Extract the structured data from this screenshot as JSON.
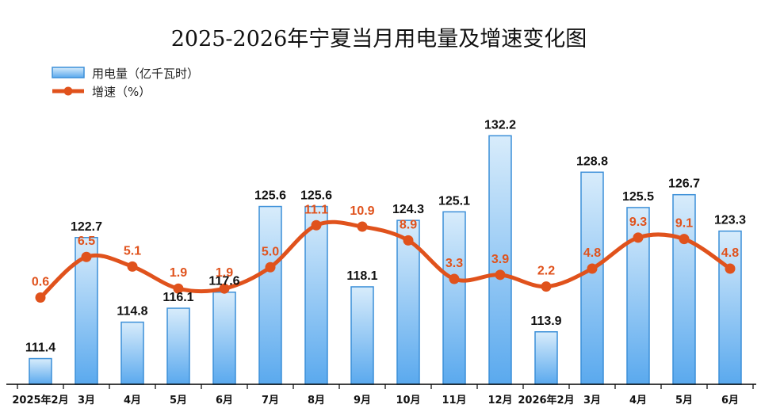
{
  "chart_data": {
    "type": "bar",
    "title": "2025-2026年宁夏当月用电量及增速变化图",
    "categories": [
      "2025年2月",
      "3月",
      "4月",
      "5月",
      "6月",
      "7月",
      "8月",
      "9月",
      "10月",
      "11月",
      "12月",
      "2026年2月",
      "3月",
      "4月",
      "5月",
      "6月"
    ],
    "series": [
      {
        "name": "用电量（亿千瓦时）",
        "type": "bar",
        "values": [
          111.4,
          122.7,
          114.8,
          116.1,
          117.6,
          125.6,
          125.6,
          118.1,
          124.3,
          125.1,
          132.2,
          113.9,
          128.8,
          125.5,
          126.7,
          123.3
        ]
      },
      {
        "name": "增速（%）",
        "type": "line",
        "values": [
          0.6,
          6.5,
          5.1,
          1.9,
          1.9,
          5.0,
          11.1,
          10.9,
          8.9,
          3.3,
          3.9,
          2.2,
          4.8,
          9.3,
          9.1,
          4.8
        ]
      }
    ],
    "ylim_bar": [
      109,
      134
    ],
    "ylim_line": [
      -12,
      30
    ],
    "grid": false,
    "legend_position": "top-left",
    "colors": {
      "bar_fill_top": "#d8ecfb",
      "bar_fill_bottom": "#5aa9ee",
      "bar_stroke": "#3b8fd8",
      "line": "#e0521c",
      "rate_label": "#e0521c"
    }
  }
}
